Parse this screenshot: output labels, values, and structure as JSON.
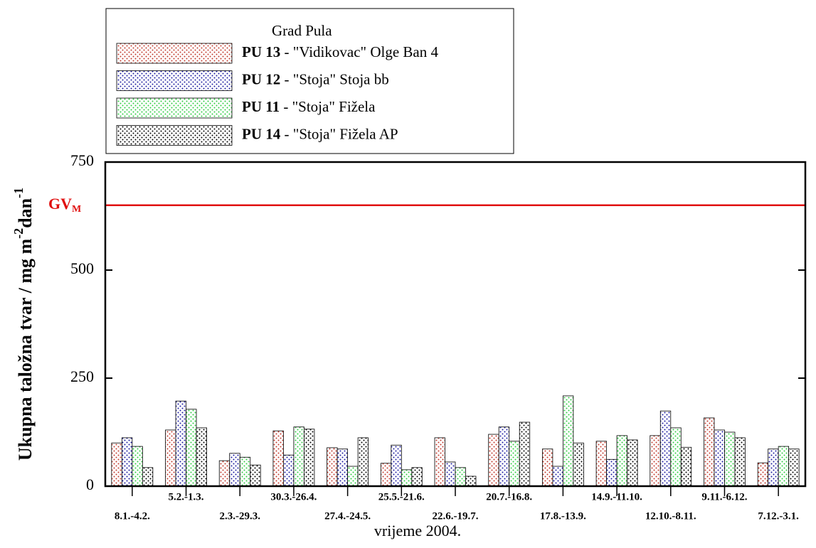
{
  "chart_data": {
    "type": "bar",
    "legend_title": "Grad Pula",
    "categories": [
      "8.1.-4.2.",
      "5.2.-1.3.",
      "2.3.-29.3.",
      "30.3.-26.4.",
      "27.4.-24.5.",
      "25.5.-21.6.",
      "22.6.-19.7.",
      "20.7.-16.8.",
      "17.8.-13.9.",
      "14.9.-11.10.",
      "12.10.-8.11.",
      "9.11.-6.12.",
      "7.12.-3.1."
    ],
    "series": [
      {
        "name": "PU 13",
        "description": " - \"Vidikovac\" Olge Ban 4",
        "color": "#c0392b",
        "values": [
          100,
          130,
          59,
          128,
          89,
          53,
          112,
          120,
          86,
          104,
          117,
          158,
          54
        ]
      },
      {
        "name": "PU 12",
        "description": " - \"Stoja\" Stoja bb",
        "color": "#1a1aa0",
        "values": [
          112,
          197,
          76,
          72,
          86,
          95,
          56,
          137,
          46,
          62,
          174,
          130,
          86
        ]
      },
      {
        "name": "PU 11",
        "description": " - \"Stoja\" Fižela",
        "color": "#2ecc40",
        "values": [
          92,
          178,
          67,
          137,
          46,
          38,
          43,
          104,
          209,
          117,
          135,
          125,
          92
        ]
      },
      {
        "name": "PU 14",
        "description": " - \"Stoja\" Fižela AP",
        "color": "#000000",
        "values": [
          43,
          135,
          49,
          132,
          112,
          43,
          23,
          148,
          100,
          107,
          90,
          112,
          86
        ]
      }
    ],
    "ylim": [
      0,
      750
    ],
    "yticks": [
      0,
      250,
      500,
      750
    ],
    "ylabel": [
      "Ukupna taložna tvar / mg m",
      "-2",
      "dan",
      "-1"
    ],
    "xlabel": "vrijeme 2004.",
    "reference_line": {
      "label": "GV",
      "subscript": "M",
      "value": 650,
      "color": "#e01010"
    }
  }
}
